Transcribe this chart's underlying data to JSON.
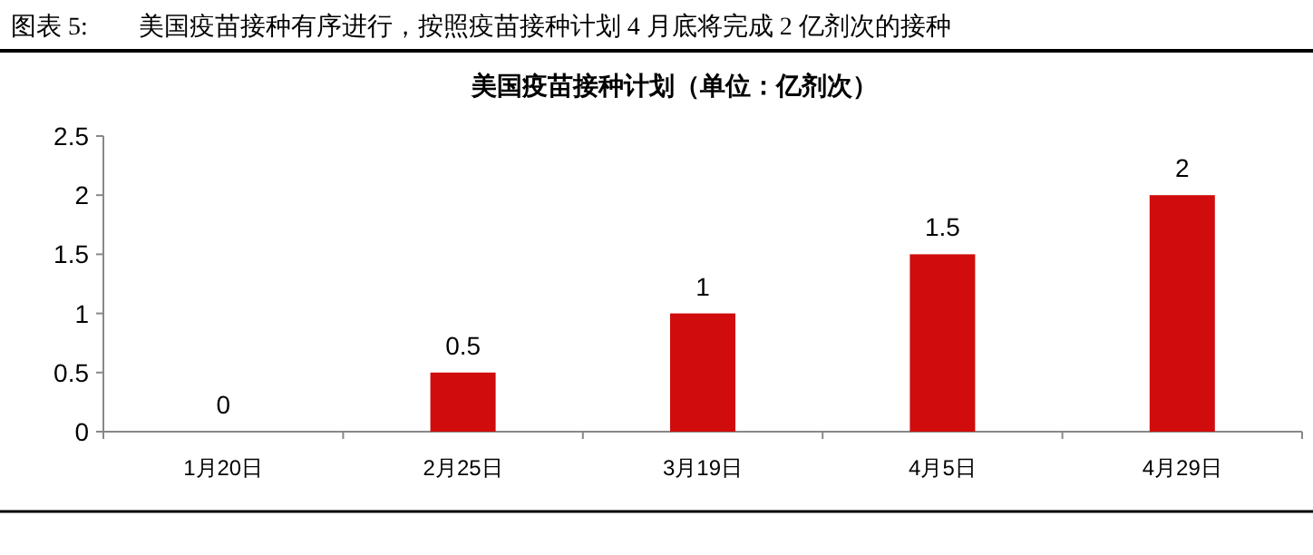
{
  "chart_data": {
    "type": "bar",
    "title": "图表 5:　　美国疫苗接种有序进行，按照疫苗接种计划 4 月底将完成 2 亿剂次的接种",
    "subtitle": "美国疫苗接种计划（单位：亿剂次）",
    "categories": [
      "1月20日",
      "2月25日",
      "3月19日",
      "4月5日",
      "4月29日"
    ],
    "values": [
      0,
      0.5,
      1,
      1.5,
      2
    ],
    "color": "#d00c0c",
    "ylim": [
      0,
      2.5
    ],
    "yticks": [
      0,
      0.5,
      1,
      1.5,
      2,
      2.5
    ],
    "data_labels": true,
    "grid": false
  }
}
